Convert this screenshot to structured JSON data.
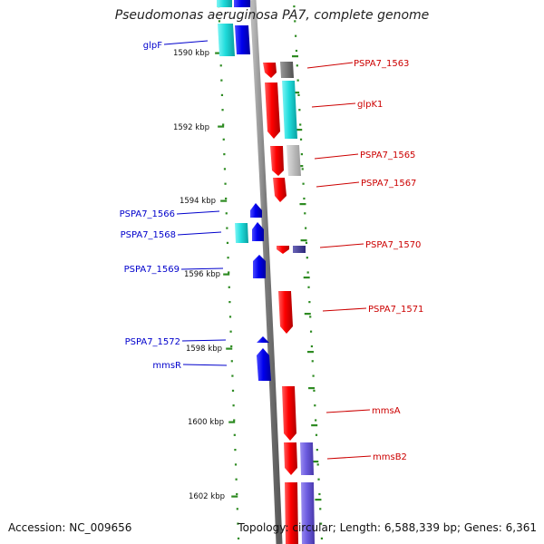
{
  "title": "Pseudomonas aeruginosa PA7, complete genome",
  "accession": "Accession: NC_009656",
  "topology": "Topology: circular; Length: 6,588,339 bp; Genes: 6,361",
  "colors": {
    "backbone": "#8a8a8a",
    "tick": "#2e8b22",
    "scale_label": "#111111",
    "forward_label": "#0000cc",
    "reverse_label": "#cc0000"
  },
  "scale_labels": [
    "1590 kbp",
    "1592 kbp",
    "1594 kbp",
    "1596 kbp",
    "1598 kbp",
    "1600 kbp",
    "1602 kbp"
  ],
  "forward_genes": [
    {
      "label": "glpF",
      "color": "cyan"
    },
    {
      "label": "PSPA7_1566",
      "color": "blue"
    },
    {
      "label": "PSPA7_1568",
      "color": "cyan"
    },
    {
      "label": "PSPA7_1569",
      "color": "blue"
    },
    {
      "label": "PSPA7_1572",
      "color": "blue"
    },
    {
      "label": "mmsR",
      "color": "blue"
    }
  ],
  "reverse_genes": [
    {
      "label": "PSPA7_1563",
      "color": "red"
    },
    {
      "label": "glpK1",
      "color": "red"
    },
    {
      "label": "PSPA7_1565",
      "color": "red"
    },
    {
      "label": "PSPA7_1567",
      "color": "red"
    },
    {
      "label": "PSPA7_1570",
      "color": "red"
    },
    {
      "label": "PSPA7_1571",
      "color": "red"
    },
    {
      "label": "mmsA",
      "color": "red"
    },
    {
      "label": "mmsB2",
      "color": "red"
    }
  ]
}
